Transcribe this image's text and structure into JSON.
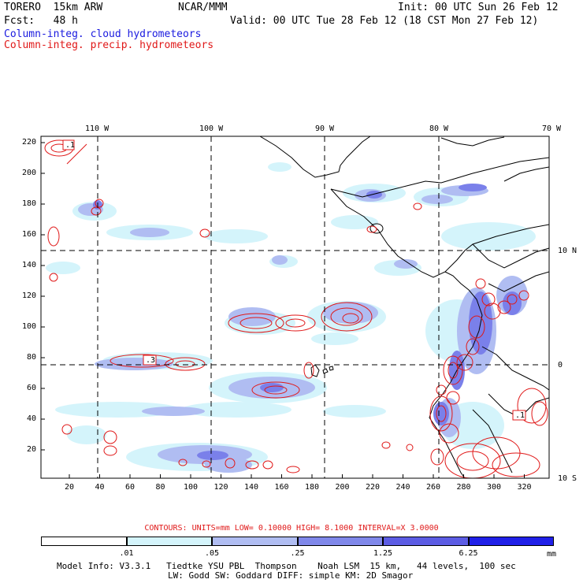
{
  "header": {
    "model": "TORERO  15km ARW",
    "center": "NCAR/MMM",
    "init": "Init: 00 UTC Sun 26 Feb 12",
    "fcst": "Fcst:   48 h",
    "valid": "Valid: 00 UTC Tue 28 Feb 12 (18 CST Mon 27 Feb 12)",
    "field1": "Column-integ. cloud hydrometeors",
    "field2": "Column-integ. precip. hydrometeors"
  },
  "map": {
    "lon_labels": [
      "110 W",
      "100 W",
      "90 W",
      "80 W",
      "70 W"
    ],
    "lat_labels": [
      "10 N",
      "0",
      "10 S"
    ],
    "y_ticks": [
      "220",
      "200",
      "180",
      "160",
      "140",
      "120",
      "100",
      "80",
      "60",
      "40",
      "20"
    ],
    "x_ticks": [
      "20",
      "40",
      "60",
      "80",
      "100",
      "120",
      "140",
      "160",
      "180",
      "200",
      "220",
      "240",
      "260",
      "280",
      "300",
      "320"
    ],
    "contour_labels": [
      ".1",
      ".3",
      ".1"
    ]
  },
  "legend": {
    "contours_text": "CONTOURS:  UNITS=mm  LOW= 0.10000      HIGH=  8.1000      INTERVAL=X  3.0000",
    "tick_labels": [
      ".01",
      ".05",
      ".25",
      "1.25",
      "6.25"
    ],
    "units": "mm",
    "colors": [
      "#ffffff",
      "#d4f4fb",
      "#b0bdf2",
      "#8088ea",
      "#5c5ce4",
      "#2020e8"
    ]
  },
  "footer": {
    "line1": "Model Info: V3.3.1   Tiedtke YSU PBL  Thompson    Noah LSM  15 km,   44 levels,  100 sec",
    "line2": "LW: Godd SW: Goddard DIFF: simple KM: 2D Smagor"
  }
}
